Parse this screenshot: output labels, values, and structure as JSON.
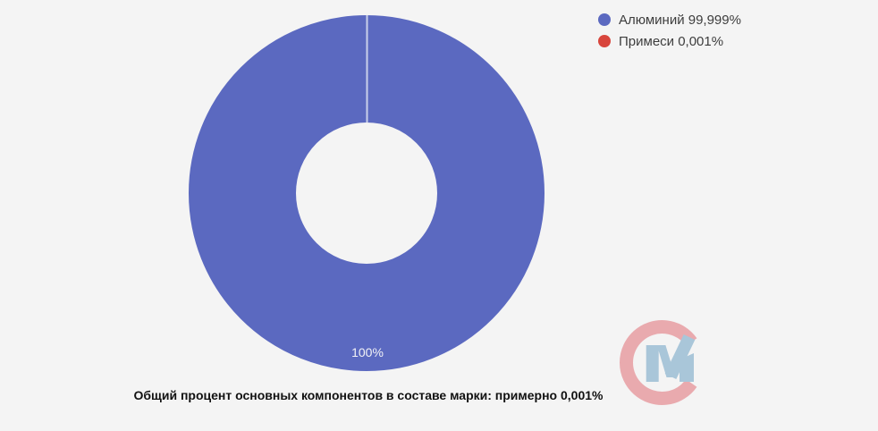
{
  "chart_data": {
    "type": "pie",
    "donut": true,
    "categories": [
      "Алюминий",
      "Примеси"
    ],
    "values": [
      99.999,
      0.001
    ],
    "unit": "%",
    "colors": [
      "#5b69c0",
      "#d8453c"
    ],
    "legend_labels": [
      "Алюминий 99,999%",
      "Примеси 0,001%"
    ],
    "legend_position": "top-right",
    "slice_label": "100%",
    "divider_color": "#c9d0ea",
    "title": ""
  },
  "caption": "Общий процент основных компонентов в составе марки: примерно 0,001%",
  "watermark": {
    "letters": "СМ",
    "c_color": "#e9a7ab",
    "m_color": "#a6c4d8"
  },
  "page": {
    "background": "#f4f4f4"
  }
}
